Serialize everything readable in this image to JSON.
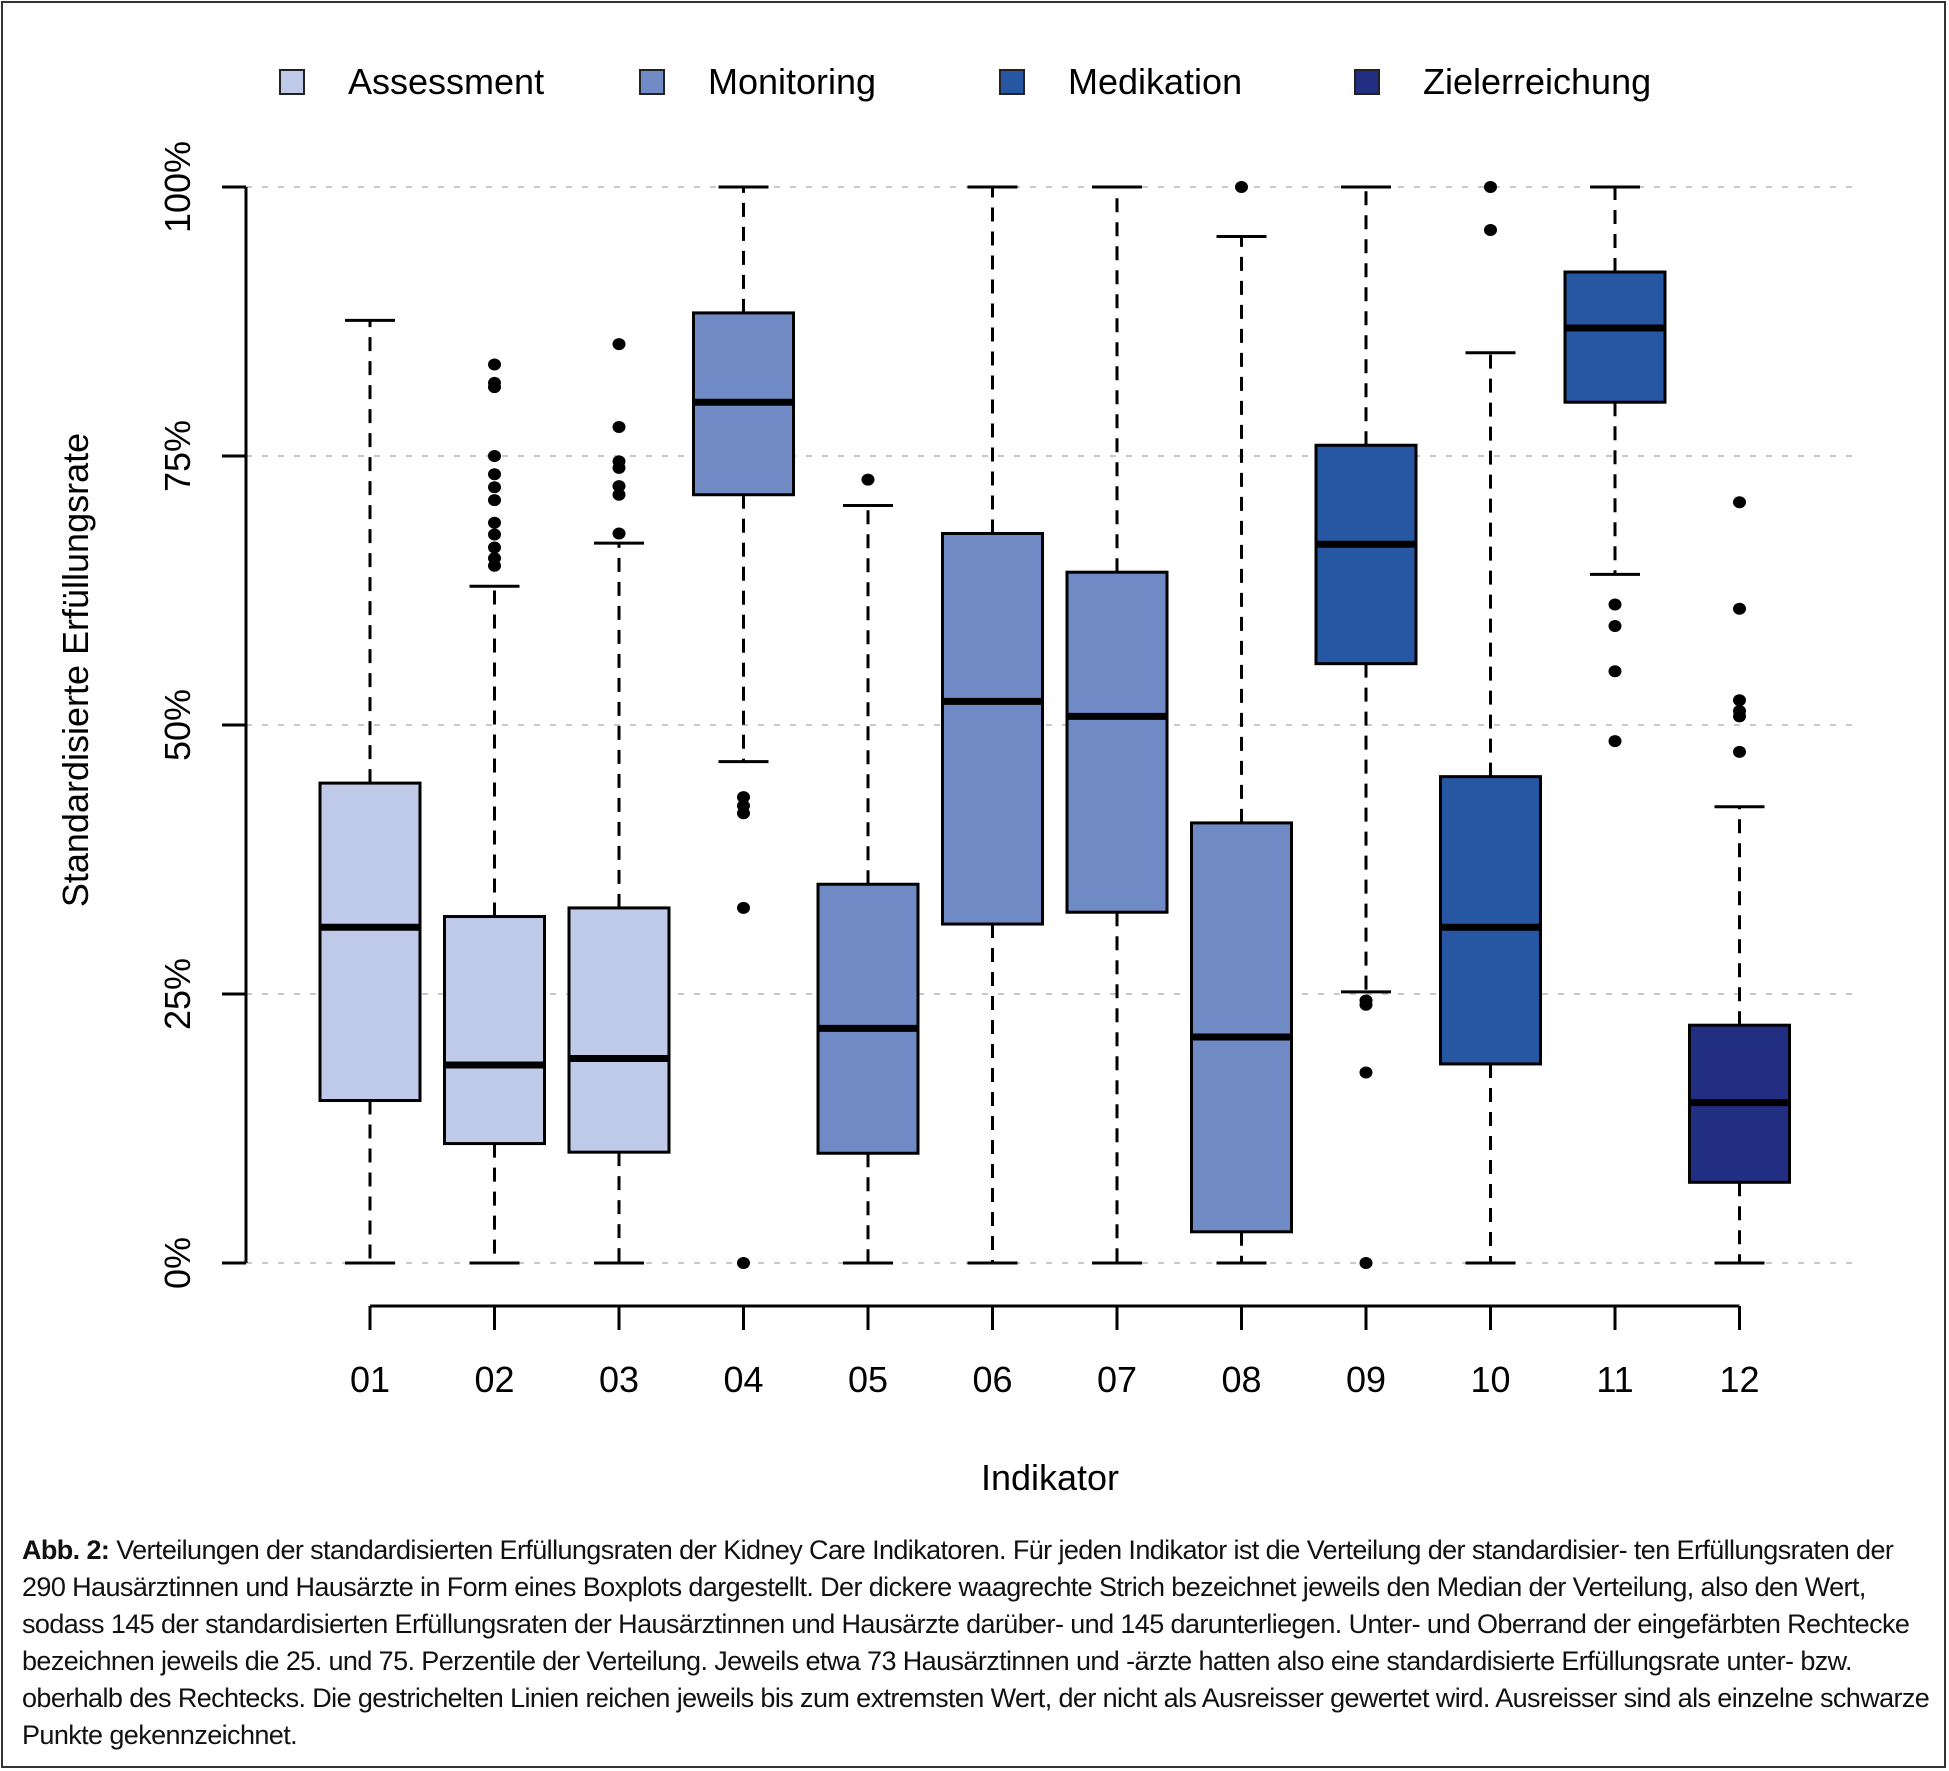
{
  "chart_data": {
    "type": "boxplot",
    "title": "",
    "xlabel": "Indikator",
    "ylabel": "Standardisierte Erfüllungsrate",
    "ylim": [
      0,
      100
    ],
    "y_unit": "%",
    "y_ticks": [
      0,
      25,
      50,
      75,
      100
    ],
    "y_tick_labels": [
      "0%",
      "25%",
      "50%",
      "75%",
      "100%"
    ],
    "grid": "horizontal dotted at y ticks",
    "legend_position": "top",
    "legend": [
      {
        "name": "Assessment",
        "color": "#bfcae8"
      },
      {
        "name": "Monitoring",
        "color": "#6f8ac4"
      },
      {
        "name": "Medikation",
        "color": "#2757a3"
      },
      {
        "name": "Zielerreichung",
        "color": "#222e82"
      }
    ],
    "categories": [
      "01",
      "02",
      "03",
      "04",
      "05",
      "06",
      "07",
      "08",
      "09",
      "10",
      "11",
      "12"
    ],
    "boxes": [
      {
        "label": "01",
        "group": "Assessment",
        "whisker_low": 0,
        "q1": 15.1,
        "median": 31.2,
        "q3": 44.6,
        "whisker_high": 87.6,
        "outliers": []
      },
      {
        "label": "02",
        "group": "Assessment",
        "whisker_low": 0,
        "q1": 11.1,
        "median": 18.4,
        "q3": 32.2,
        "whisker_high": 62.9,
        "outliers": [
          64.8,
          65.5,
          66.5,
          67.7,
          68.8,
          70.9,
          72.1,
          73.3,
          75.0,
          81.4,
          81.8,
          83.5
        ]
      },
      {
        "label": "03",
        "group": "Assessment",
        "whisker_low": 0,
        "q1": 10.3,
        "median": 19.0,
        "q3": 33.0,
        "whisker_high": 66.9,
        "outliers": [
          67.8,
          71.4,
          72.2,
          73.9,
          74.5,
          77.7,
          85.4
        ]
      },
      {
        "label": "04",
        "group": "Monitoring",
        "whisker_low": 46.6,
        "q1": 71.4,
        "median": 80.0,
        "q3": 88.3,
        "whisker_high": 100,
        "outliers": [
          0,
          33.0,
          41.8,
          42.5,
          43.3
        ]
      },
      {
        "label": "05",
        "group": "Monitoring",
        "whisker_low": 0,
        "q1": 10.2,
        "median": 21.8,
        "q3": 35.2,
        "whisker_high": 70.4,
        "outliers": [
          72.8
        ]
      },
      {
        "label": "06",
        "group": "Monitoring",
        "whisker_low": 0,
        "q1": 31.5,
        "median": 52.2,
        "q3": 67.8,
        "whisker_high": 100,
        "outliers": []
      },
      {
        "label": "07",
        "group": "Monitoring",
        "whisker_low": 0,
        "q1": 32.6,
        "median": 50.8,
        "q3": 64.2,
        "whisker_high": 100,
        "outliers": []
      },
      {
        "label": "08",
        "group": "Monitoring",
        "whisker_low": 0,
        "q1": 2.9,
        "median": 21.0,
        "q3": 40.9,
        "whisker_high": 95.4,
        "outliers": [
          100
        ]
      },
      {
        "label": "09",
        "group": "Medikation",
        "whisker_low": 25.2,
        "q1": 55.7,
        "median": 66.8,
        "q3": 76.0,
        "whisker_high": 100,
        "outliers": [
          0,
          17.7,
          24.0,
          24.4
        ]
      },
      {
        "label": "10",
        "group": "Medikation",
        "whisker_low": 0,
        "q1": 18.5,
        "median": 31.2,
        "q3": 45.2,
        "whisker_high": 84.6,
        "outliers": [
          96.0,
          100
        ]
      },
      {
        "label": "11",
        "group": "Medikation",
        "whisker_low": 64.0,
        "q1": 80.0,
        "median": 86.9,
        "q3": 92.1,
        "whisker_high": 100,
        "outliers": [
          48.5,
          55.0,
          59.2,
          61.2
        ]
      },
      {
        "label": "12",
        "group": "Zielerreichung",
        "whisker_low": 0,
        "q1": 7.5,
        "median": 14.9,
        "q3": 22.1,
        "whisker_high": 42.4,
        "outliers": [
          47.5,
          50.8,
          51.3,
          52.3,
          60.8,
          70.7
        ]
      }
    ]
  },
  "caption": {
    "label": "Abb. 2:",
    "text": " Verteilungen der standardisierten Erfüllungsraten der Kidney Care Indikatoren. Für jeden Indikator ist die Verteilung der standardisier- ten Erfüllungsraten der 290 Hausärztinnen und Hausärzte in Form eines Boxplots dargestellt. Der dickere waagrechte Strich bezeichnet jeweils den Median der Verteilung, also den Wert, sodass 145 der standardisierten Erfüllungsraten der Hausärztinnen und Hausärzte darüber- und 145 darunterliegen. Unter- und Oberrand der eingefärbten Rechtecke bezeichnen jeweils die 25. und 75. Perzentile der Verteilung. Jeweils etwa 73 Hausärztinnen und -ärzte hatten also eine standardisierte Erfüllungsrate unter- bzw. oberhalb des Rechtecks. Die gestrichelten Linien reichen jeweils bis zum extremsten Wert, der nicht als Ausreisser gewertet wird. Ausreisser sind als einzelne schwarze Punkte gekennzeichnet."
  }
}
